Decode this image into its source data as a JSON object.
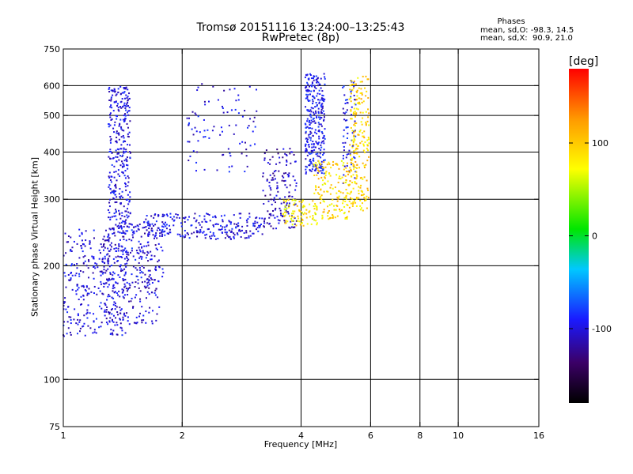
{
  "chart_data": {
    "type": "scatter",
    "title": "Tromsø 20151116 13:24:00–13:25:43",
    "subtitle": "RwPretec (8p)",
    "xlabel": "Frequency [MHz]",
    "ylabel": "Stationary phase Virtual Height [km]",
    "x_scale": "log",
    "y_scale": "log",
    "xlim": [
      1,
      16
    ],
    "ylim": [
      75,
      750
    ],
    "x_ticks": [
      1,
      2,
      4,
      6,
      8,
      10,
      16
    ],
    "x_tick_labels": [
      "1",
      "2",
      "4",
      "6",
      "8",
      "10",
      "16"
    ],
    "x_grid": [
      2,
      4,
      6,
      8,
      10
    ],
    "y_ticks": [
      75,
      100,
      200,
      300,
      400,
      500,
      600,
      750
    ],
    "y_tick_labels": [
      "75",
      "100",
      "200",
      "300",
      "400",
      "500",
      "600",
      "750"
    ],
    "y_grid": [
      100,
      200,
      300,
      400,
      500,
      600
    ],
    "grid": true,
    "legend": {
      "title": "Phases",
      "lines": [
        "mean, sd,O: -98.3, 14.5",
        "mean, sd,X:  90.9, 21.0"
      ],
      "placement": "top-right"
    },
    "colorbar": {
      "label": "[deg]",
      "range": [
        -180,
        180
      ],
      "ticks": [
        100,
        0,
        -100
      ],
      "tick_labels": [
        "100",
        "0",
        "-100"
      ],
      "colors": [
        "#000000",
        "#3b0066",
        "#1a1aff",
        "#00c8ff",
        "#00e600",
        "#ffff00",
        "#ff9900",
        "#ff0000"
      ]
    },
    "series": [
      {
        "mode": "O",
        "phase_mean": -98.3,
        "phase_sd": 14.5,
        "clusters": [
          {
            "f_range": [
              1.0,
              1.45
            ],
            "h_range": [
              130,
              250
            ],
            "phase": -100,
            "count": 320
          },
          {
            "f_range": [
              1.25,
              1.75
            ],
            "h_range": [
              140,
              260
            ],
            "phase": -105,
            "count": 260
          },
          {
            "f_range": [
              1.3,
              1.48
            ],
            "h_range": [
              250,
              600
            ],
            "phase": -100,
            "count": 320
          },
          {
            "f_range": [
              1.4,
              1.8
            ],
            "h_range": [
              180,
              260
            ],
            "phase": -95,
            "count": 70
          },
          {
            "f_range": [
              1.6,
              3.2
            ],
            "h_range": [
              235,
              275
            ],
            "phase": -100,
            "count": 240
          },
          {
            "f_range": [
              3.2,
              3.9
            ],
            "h_range": [
              250,
              410
            ],
            "phase": -110,
            "count": 150
          },
          {
            "f_range": [
              4.1,
              4.6
            ],
            "h_range": [
              350,
              650
            ],
            "phase": -95,
            "count": 300
          },
          {
            "f_range": [
              2.05,
              3.1
            ],
            "h_range": [
              350,
              620
            ],
            "phase": -100,
            "count": 90
          },
          {
            "f_range": [
              5.1,
              5.5
            ],
            "h_range": [
              330,
              620
            ],
            "phase": -95,
            "count": 70
          }
        ]
      },
      {
        "mode": "X",
        "phase_mean": 90.9,
        "phase_sd": 21.0,
        "clusters": [
          {
            "f_range": [
              3.6,
              4.4
            ],
            "h_range": [
              255,
              300
            ],
            "phase": 85,
            "count": 90
          },
          {
            "f_range": [
              4.3,
              5.3
            ],
            "h_range": [
              265,
              380
            ],
            "phase": 90,
            "count": 160
          },
          {
            "f_range": [
              5.3,
              5.95
            ],
            "h_range": [
              280,
              640
            ],
            "phase": 95,
            "count": 220
          }
        ]
      }
    ]
  }
}
